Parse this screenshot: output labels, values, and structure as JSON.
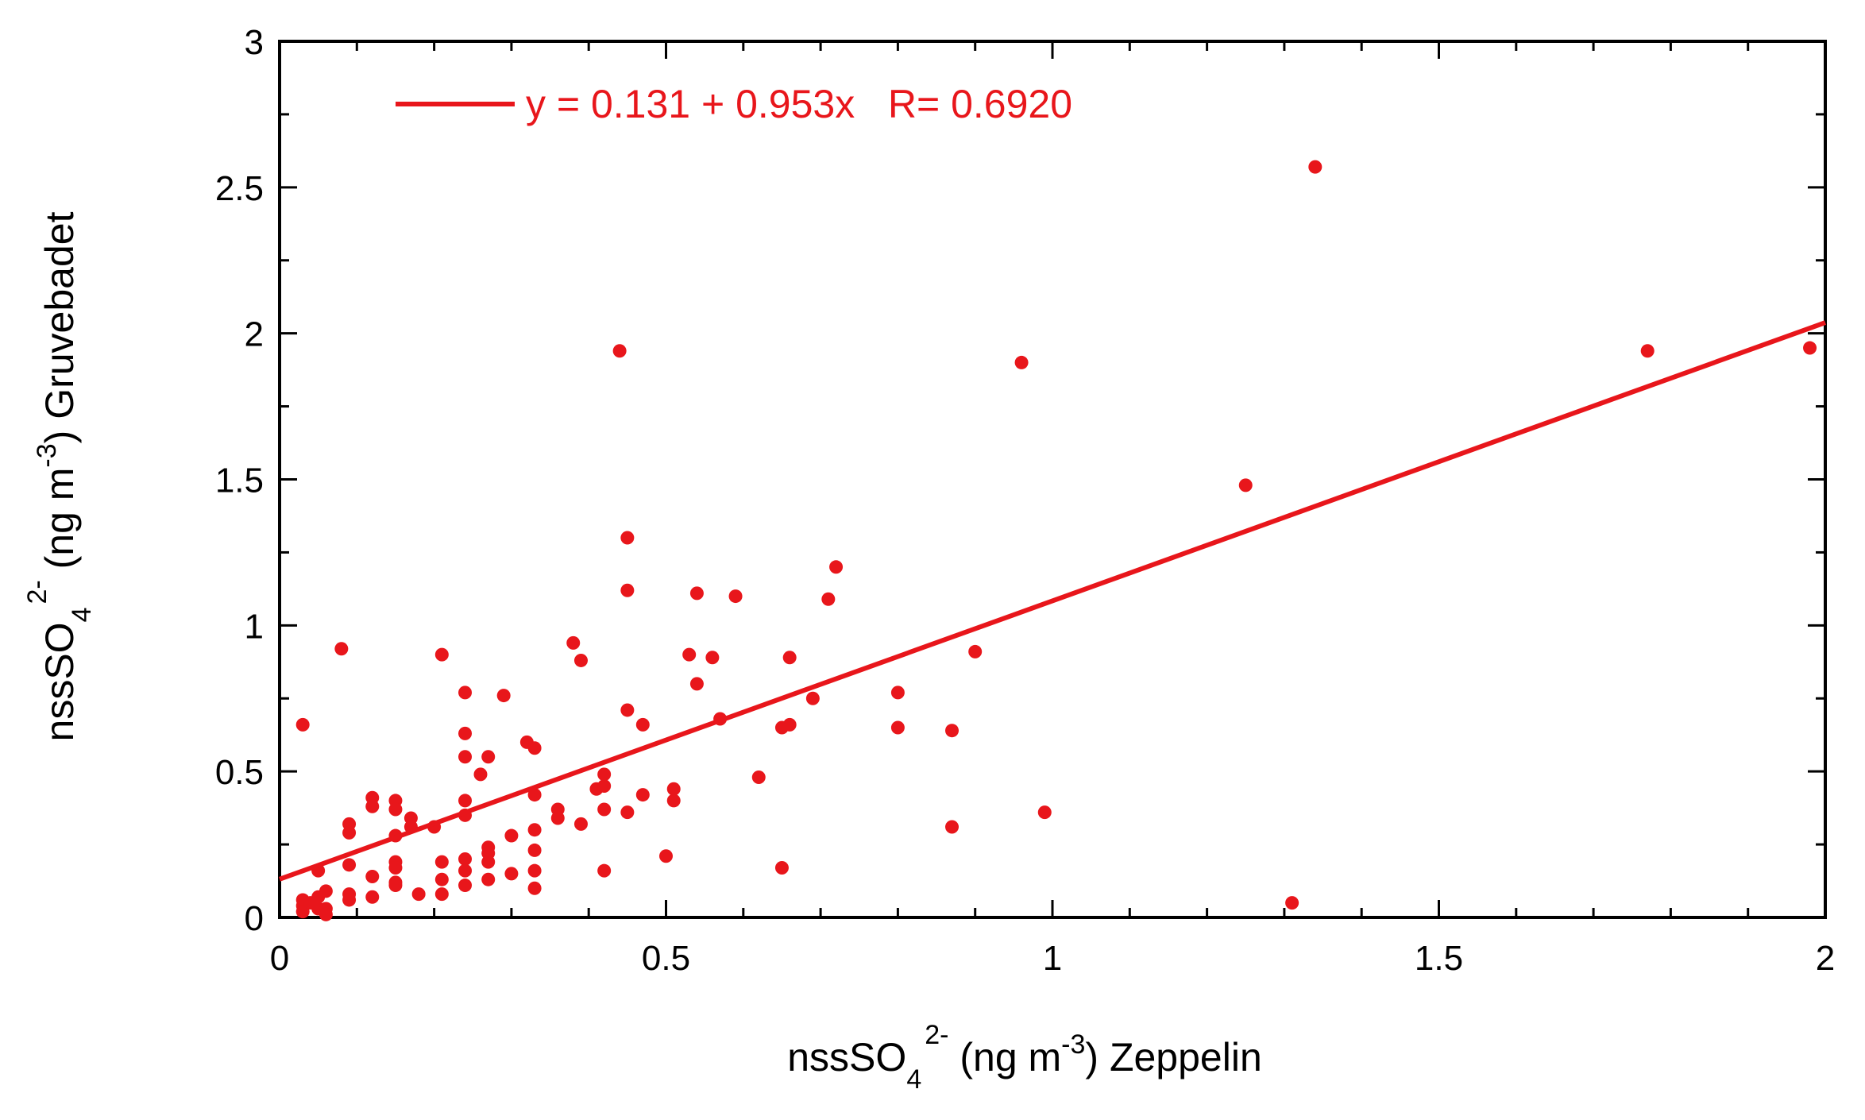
{
  "chart_data": {
    "type": "scatter",
    "title": "",
    "xlabel": {
      "base": "nssSO",
      "sub": "4",
      "sup": "2-",
      "unit_pre": " (ng m",
      "unit_sup": "-3",
      "unit_post": ") Zeppelin"
    },
    "ylabel": {
      "base": "nssSO",
      "sub": "4",
      "sup": "2-",
      "unit_pre": " (ng m",
      "unit_sup": "-3",
      "unit_post": ") Gruvebadet"
    },
    "xlim": [
      0,
      2
    ],
    "ylim": [
      0,
      3
    ],
    "xticks": [
      "0",
      "0.5",
      "1",
      "1.5",
      "2"
    ],
    "yticks": [
      "0",
      "0.5",
      "1",
      "1.5",
      "2",
      "2.5",
      "3"
    ],
    "grid": false,
    "legend_position": "top-left",
    "color": "#e8161b",
    "fit": {
      "intercept": 0.131,
      "slope": 0.953,
      "R": 0.692,
      "label": "y = 0.131 + 0.953x   R= 0.6920"
    },
    "points": [
      [
        0.03,
        0.66
      ],
      [
        0.03,
        0.06
      ],
      [
        0.03,
        0.04
      ],
      [
        0.03,
        0.02
      ],
      [
        0.04,
        0.05
      ],
      [
        0.05,
        0.16
      ],
      [
        0.05,
        0.07
      ],
      [
        0.05,
        0.03
      ],
      [
        0.06,
        0.09
      ],
      [
        0.06,
        0.03
      ],
      [
        0.06,
        0.01
      ],
      [
        0.08,
        0.92
      ],
      [
        0.09,
        0.32
      ],
      [
        0.09,
        0.29
      ],
      [
        0.09,
        0.18
      ],
      [
        0.09,
        0.08
      ],
      [
        0.09,
        0.06
      ],
      [
        0.12,
        0.41
      ],
      [
        0.12,
        0.38
      ],
      [
        0.12,
        0.14
      ],
      [
        0.12,
        0.07
      ],
      [
        0.15,
        0.4
      ],
      [
        0.15,
        0.37
      ],
      [
        0.15,
        0.28
      ],
      [
        0.15,
        0.19
      ],
      [
        0.15,
        0.17
      ],
      [
        0.15,
        0.12
      ],
      [
        0.15,
        0.11
      ],
      [
        0.17,
        0.34
      ],
      [
        0.17,
        0.31
      ],
      [
        0.18,
        0.08
      ],
      [
        0.2,
        0.31
      ],
      [
        0.21,
        0.9
      ],
      [
        0.21,
        0.19
      ],
      [
        0.21,
        0.13
      ],
      [
        0.21,
        0.08
      ],
      [
        0.24,
        0.77
      ],
      [
        0.24,
        0.63
      ],
      [
        0.24,
        0.55
      ],
      [
        0.24,
        0.4
      ],
      [
        0.24,
        0.35
      ],
      [
        0.24,
        0.2
      ],
      [
        0.24,
        0.16
      ],
      [
        0.24,
        0.11
      ],
      [
        0.26,
        0.49
      ],
      [
        0.27,
        0.55
      ],
      [
        0.27,
        0.24
      ],
      [
        0.27,
        0.22
      ],
      [
        0.27,
        0.19
      ],
      [
        0.27,
        0.13
      ],
      [
        0.29,
        0.76
      ],
      [
        0.3,
        0.28
      ],
      [
        0.3,
        0.15
      ],
      [
        0.32,
        0.6
      ],
      [
        0.33,
        0.58
      ],
      [
        0.33,
        0.42
      ],
      [
        0.33,
        0.3
      ],
      [
        0.33,
        0.23
      ],
      [
        0.33,
        0.16
      ],
      [
        0.33,
        0.1
      ],
      [
        0.36,
        0.37
      ],
      [
        0.36,
        0.34
      ],
      [
        0.38,
        0.94
      ],
      [
        0.39,
        0.88
      ],
      [
        0.39,
        0.32
      ],
      [
        0.41,
        0.44
      ],
      [
        0.42,
        0.49
      ],
      [
        0.42,
        0.45
      ],
      [
        0.42,
        0.37
      ],
      [
        0.42,
        0.16
      ],
      [
        0.44,
        1.94
      ],
      [
        0.45,
        1.3
      ],
      [
        0.45,
        1.12
      ],
      [
        0.45,
        0.71
      ],
      [
        0.45,
        0.36
      ],
      [
        0.47,
        0.66
      ],
      [
        0.47,
        0.42
      ],
      [
        0.5,
        0.21
      ],
      [
        0.51,
        0.44
      ],
      [
        0.51,
        0.4
      ],
      [
        0.53,
        0.9
      ],
      [
        0.54,
        1.11
      ],
      [
        0.54,
        0.8
      ],
      [
        0.56,
        0.89
      ],
      [
        0.57,
        0.68
      ],
      [
        0.59,
        1.1
      ],
      [
        0.62,
        0.48
      ],
      [
        0.65,
        0.65
      ],
      [
        0.65,
        0.17
      ],
      [
        0.66,
        0.89
      ],
      [
        0.66,
        0.66
      ],
      [
        0.69,
        0.75
      ],
      [
        0.71,
        1.09
      ],
      [
        0.72,
        1.2
      ],
      [
        0.8,
        0.77
      ],
      [
        0.8,
        0.65
      ],
      [
        0.87,
        0.64
      ],
      [
        0.87,
        0.31
      ],
      [
        0.9,
        0.91
      ],
      [
        0.96,
        1.9
      ],
      [
        0.99,
        0.36
      ],
      [
        1.25,
        1.48
      ],
      [
        1.31,
        0.05
      ],
      [
        1.34,
        2.57
      ],
      [
        1.77,
        1.94
      ],
      [
        1.98,
        1.95
      ]
    ]
  }
}
